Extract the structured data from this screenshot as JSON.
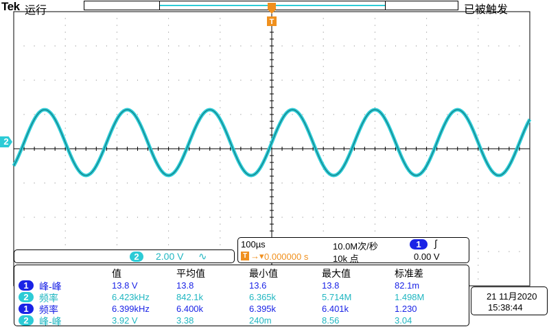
{
  "header": {
    "brand": "Tek",
    "run_state": "运行",
    "trigger_state": "已被触发",
    "trigger_marker_label": "T"
  },
  "channel2": {
    "marker": "2",
    "scale_value": "2.00 V",
    "coupling_symbol": "∿",
    "trace_color": "#2ccbd6"
  },
  "horizontal": {
    "time_per_div": "100µs",
    "sample_rate": "10.0M次/秒",
    "trigger_source_number": "1",
    "trigger_slope_symbol": "∫",
    "trigger_position": "0.000000 s",
    "trigger_position_icon": "T",
    "record_length": "10k 点",
    "trigger_level": "0.00 V"
  },
  "measurements": {
    "headers": [
      "值",
      "平均值",
      "最小值",
      "最大值",
      "标准差"
    ],
    "rows": [
      {
        "channel": "1",
        "channel_color": "blue",
        "name": "峰-峰",
        "value": "13.8 V",
        "mean": "13.8",
        "min": "13.6",
        "max": "13.8",
        "std": "82.1m"
      },
      {
        "channel": "2",
        "channel_color": "cyan",
        "name": "频率",
        "value": "6.423kHz",
        "mean": "842.1k",
        "min": "6.365k",
        "max": "5.714M",
        "std": "1.498M"
      },
      {
        "channel": "1",
        "channel_color": "blue",
        "name": "频率",
        "value": "6.399kHz",
        "mean": "6.400k",
        "min": "6.395k",
        "max": "6.401k",
        "std": "1.230"
      },
      {
        "channel": "2",
        "channel_color": "cyan",
        "name": "峰-峰",
        "value": "3.92 V",
        "mean": "3.38",
        "min": "240m",
        "max": "8.56",
        "std": "3.04"
      }
    ]
  },
  "datetime": {
    "date": "21 11月2020",
    "time": "15:38:44"
  },
  "colors": {
    "cyan": "#2ccbd6",
    "blue": "#1a23e6",
    "trigger_orange": "#f0901e"
  }
}
